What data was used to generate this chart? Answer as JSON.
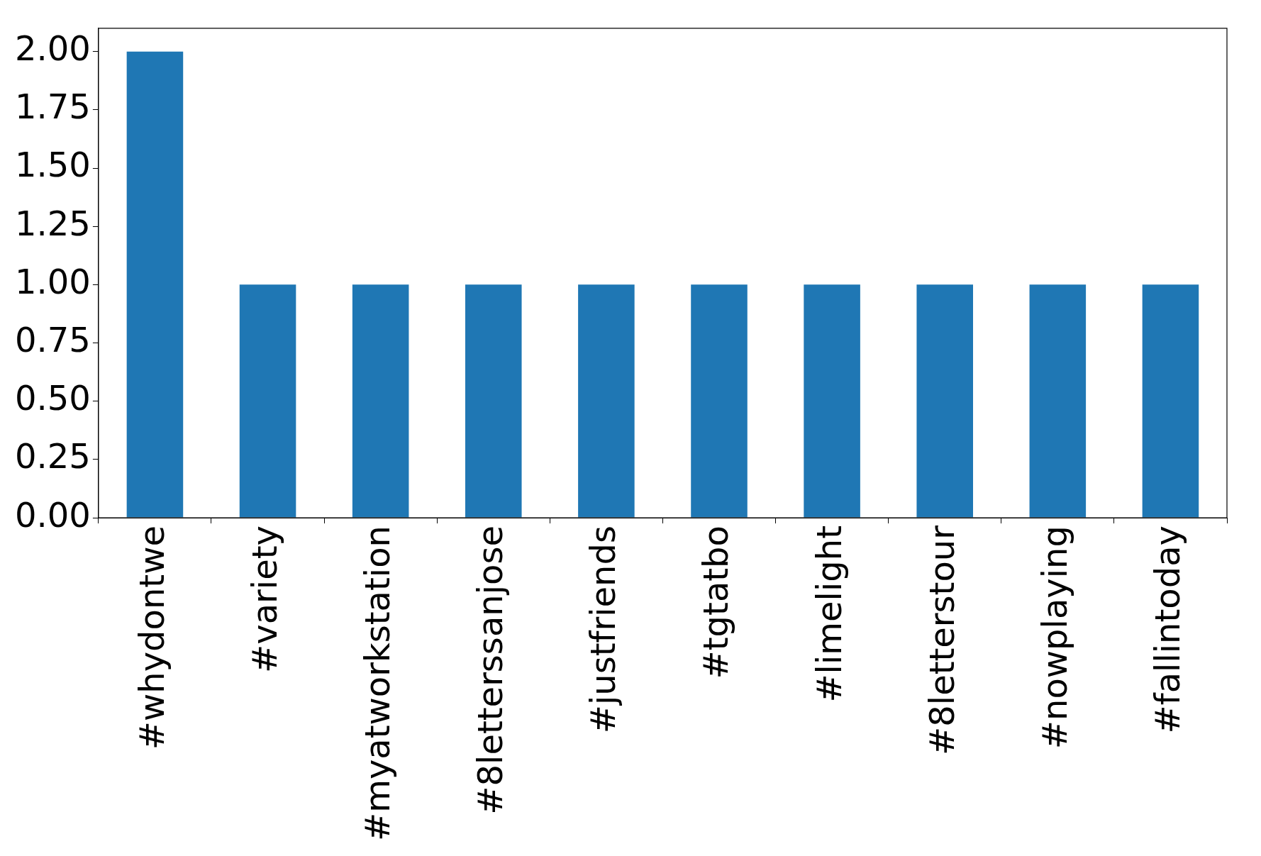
{
  "chart_data": {
    "type": "bar",
    "categories": [
      "#whydontwe",
      "#variety",
      "#myatworkstation",
      "#8letterssanjose",
      "#justfriends",
      "#tgtatbo",
      "#limelight",
      "#8letterstour",
      "#nowplaying",
      "#fallintoday"
    ],
    "values": [
      2,
      1,
      1,
      1,
      1,
      1,
      1,
      1,
      1,
      1
    ],
    "color": "#1f77b4",
    "ylim": [
      0,
      2.1
    ],
    "yticks": [
      {
        "value": 0,
        "label": "0.00"
      },
      {
        "value": 0.25,
        "label": "0.25"
      },
      {
        "value": 0.5,
        "label": "0.50"
      },
      {
        "value": 0.75,
        "label": "0.75"
      },
      {
        "value": 1,
        "label": "1.00"
      },
      {
        "value": 1.25,
        "label": "1.25"
      },
      {
        "value": 1.5,
        "label": "1.50"
      },
      {
        "value": 1.75,
        "label": "1.75"
      },
      {
        "value": 2,
        "label": "2.00"
      }
    ],
    "grid": false,
    "legend": false
  }
}
